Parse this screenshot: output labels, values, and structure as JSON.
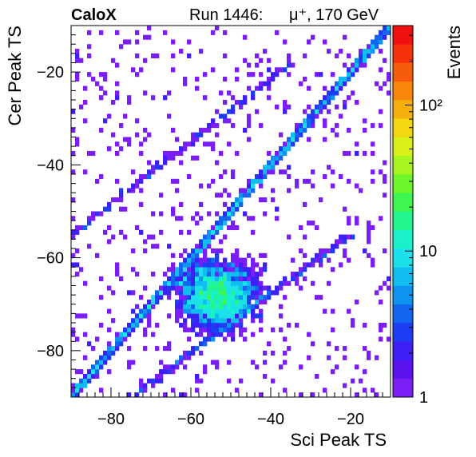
{
  "header": {
    "experiment": "CaloX",
    "run_label": "Run 1446:",
    "beam_label": "μ⁺, 170 GeV"
  },
  "chart_data": {
    "type": "heatmap",
    "title": "",
    "xlabel": "Sci Peak TS",
    "ylabel": "Cer Peak TS",
    "zlabel": "Events",
    "xlim": [
      -90,
      -10
    ],
    "ylim": [
      -90,
      -10
    ],
    "zlim": [
      1,
      350
    ],
    "zscale": "log",
    "bin_width": 1,
    "x_ticks": [
      -80,
      -60,
      -40,
      -20
    ],
    "y_ticks": [
      -80,
      -60,
      -40,
      -20
    ],
    "z_ticks": [
      {
        "value": 1,
        "label": "1"
      },
      {
        "value": 10,
        "label": "10"
      },
      {
        "value": 100,
        "label": "10²"
      }
    ],
    "grid": false,
    "colorbar": "right",
    "features": [
      {
        "name": "diagonal band",
        "from": [
          -90,
          -90
        ],
        "to": [
          -10,
          -10
        ],
        "peak_counts": 12
      },
      {
        "name": "off-diagonal band",
        "from": [
          -75,
          -90
        ],
        "to": [
          -20,
          -55
        ],
        "peak_counts": 3
      },
      {
        "name": "upper band",
        "from": [
          -90,
          -55
        ],
        "to": [
          -35,
          -18
        ],
        "peak_counts": 2
      },
      {
        "name": "central blob",
        "center": [
          -53,
          -68
        ],
        "spread": [
          8,
          6
        ],
        "peak_counts": 8
      }
    ]
  },
  "colors": {
    "palette": [
      "#7a1ef5",
      "#5b14f0",
      "#3c20f5",
      "#1f3cf5",
      "#1465f0",
      "#0e93f0",
      "#10bdf0",
      "#1ce0ea",
      "#19f2c8",
      "#22f58e",
      "#3ef552",
      "#6ef52a",
      "#a8f420",
      "#d8f018",
      "#f3d810",
      "#f6b00e",
      "#f7870c",
      "#f75b0c",
      "#f5320c",
      "#f01010"
    ]
  }
}
